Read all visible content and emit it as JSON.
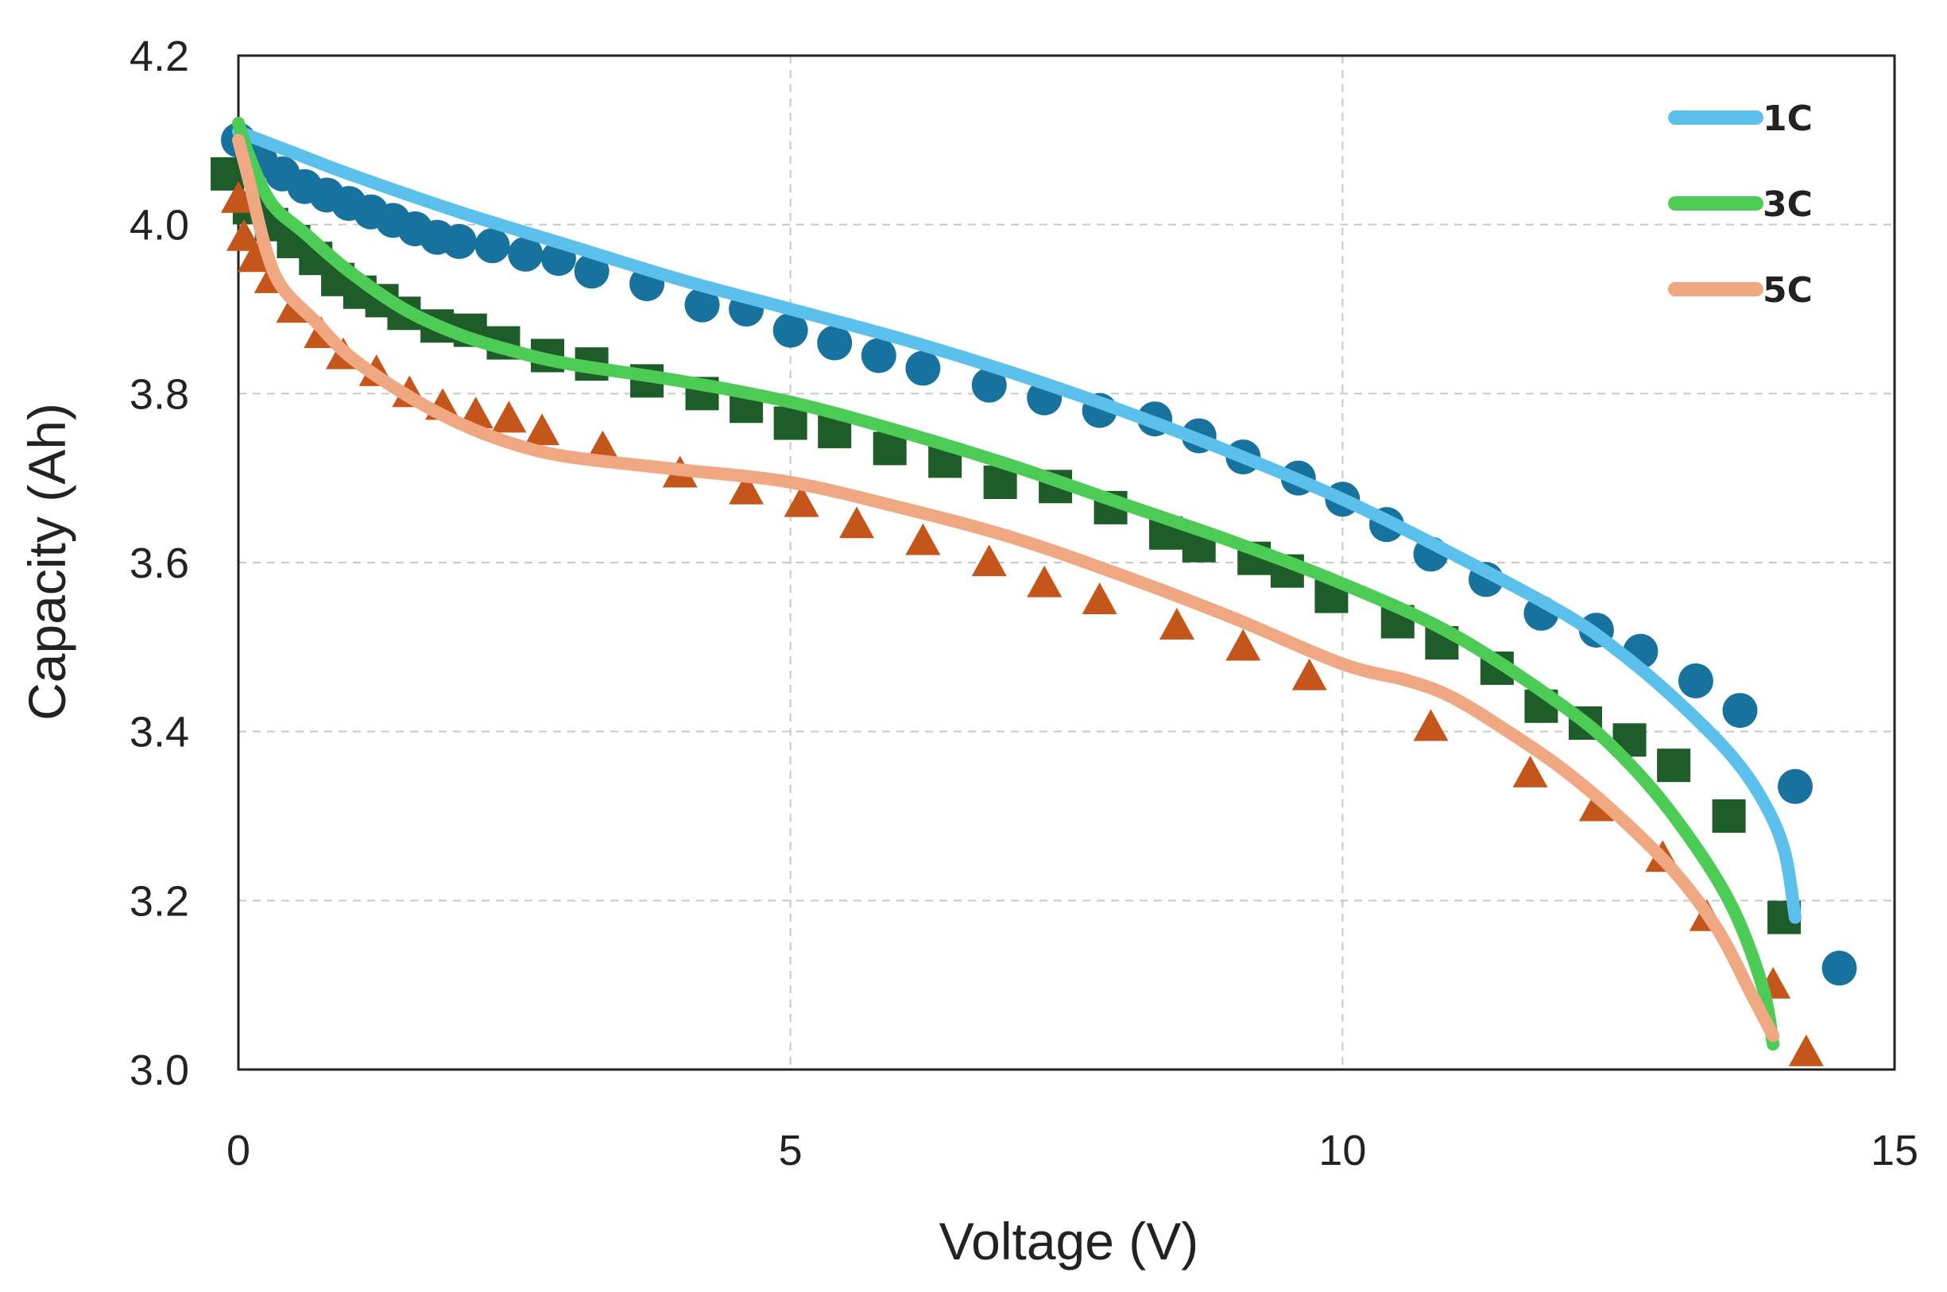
{
  "chart_data": {
    "type": "line",
    "title": "",
    "xlabel": "Voltage (V)",
    "ylabel": "Capacity (Ah)",
    "xlim": [
      0,
      15
    ],
    "ylim": [
      3.0,
      4.2
    ],
    "x_ticks": [
      0,
      5,
      10,
      15
    ],
    "y_ticks": [
      "3.0",
      "3.2",
      "3.4",
      "3.6",
      "3.8",
      "4.0",
      "4.2"
    ],
    "grid": "dashed",
    "legend_position": "top-right",
    "series": [
      {
        "name": "1C",
        "color": "#5bc0eb",
        "marker": "circle",
        "marker_color": "#17739e",
        "line": [
          [
            0,
            4.11
          ],
          [
            0.5,
            4.085
          ],
          [
            1,
            4.06
          ],
          [
            2,
            4.015
          ],
          [
            3,
            3.975
          ],
          [
            4,
            3.935
          ],
          [
            5,
            3.9
          ],
          [
            6,
            3.865
          ],
          [
            7,
            3.825
          ],
          [
            8,
            3.78
          ],
          [
            9,
            3.73
          ],
          [
            10,
            3.675
          ],
          [
            11,
            3.61
          ],
          [
            12,
            3.54
          ],
          [
            12.5,
            3.495
          ],
          [
            13,
            3.44
          ],
          [
            13.5,
            3.375
          ],
          [
            13.8,
            3.32
          ],
          [
            14,
            3.26
          ],
          [
            14.1,
            3.18
          ]
        ],
        "points": [
          [
            0,
            4.1
          ],
          [
            0.2,
            4.075
          ],
          [
            0.4,
            4.06
          ],
          [
            0.6,
            4.045
          ],
          [
            0.8,
            4.035
          ],
          [
            1.0,
            4.025
          ],
          [
            1.2,
            4.015
          ],
          [
            1.4,
            4.005
          ],
          [
            1.6,
            3.995
          ],
          [
            1.8,
            3.985
          ],
          [
            2.0,
            3.98
          ],
          [
            2.3,
            3.975
          ],
          [
            2.6,
            3.965
          ],
          [
            2.9,
            3.96
          ],
          [
            3.2,
            3.945
          ],
          [
            3.7,
            3.93
          ],
          [
            4.2,
            3.905
          ],
          [
            4.6,
            3.9
          ],
          [
            5.0,
            3.875
          ],
          [
            5.4,
            3.86
          ],
          [
            5.8,
            3.845
          ],
          [
            6.2,
            3.83
          ],
          [
            6.8,
            3.81
          ],
          [
            7.3,
            3.795
          ],
          [
            7.8,
            3.78
          ],
          [
            8.3,
            3.77
          ],
          [
            8.7,
            3.75
          ],
          [
            9.1,
            3.725
          ],
          [
            9.6,
            3.7
          ],
          [
            10.0,
            3.675
          ],
          [
            10.4,
            3.645
          ],
          [
            10.8,
            3.61
          ],
          [
            11.3,
            3.58
          ],
          [
            11.8,
            3.54
          ],
          [
            12.3,
            3.52
          ],
          [
            12.7,
            3.495
          ],
          [
            13.2,
            3.46
          ],
          [
            13.6,
            3.425
          ],
          [
            14.1,
            3.335
          ],
          [
            14.5,
            3.12
          ]
        ]
      },
      {
        "name": "3C",
        "color": "#4ccc55",
        "marker": "square",
        "marker_color": "#1e5c2a",
        "line": [
          [
            0,
            4.12
          ],
          [
            0.1,
            4.08
          ],
          [
            0.3,
            4.025
          ],
          [
            0.6,
            3.99
          ],
          [
            1,
            3.945
          ],
          [
            1.5,
            3.9
          ],
          [
            2,
            3.87
          ],
          [
            2.5,
            3.85
          ],
          [
            3,
            3.835
          ],
          [
            4,
            3.815
          ],
          [
            5,
            3.79
          ],
          [
            6,
            3.755
          ],
          [
            7,
            3.715
          ],
          [
            8,
            3.67
          ],
          [
            9,
            3.625
          ],
          [
            10,
            3.575
          ],
          [
            11,
            3.515
          ],
          [
            12,
            3.43
          ],
          [
            12.5,
            3.375
          ],
          [
            13,
            3.3
          ],
          [
            13.5,
            3.2
          ],
          [
            13.8,
            3.1
          ],
          [
            13.9,
            3.03
          ]
        ],
        "points": [
          [
            -0.1,
            4.06
          ],
          [
            0.1,
            4.02
          ],
          [
            0.3,
            4.0
          ],
          [
            0.5,
            3.98
          ],
          [
            0.7,
            3.96
          ],
          [
            0.9,
            3.935
          ],
          [
            1.1,
            3.92
          ],
          [
            1.3,
            3.91
          ],
          [
            1.5,
            3.895
          ],
          [
            1.8,
            3.88
          ],
          [
            2.1,
            3.875
          ],
          [
            2.4,
            3.86
          ],
          [
            2.8,
            3.845
          ],
          [
            3.2,
            3.835
          ],
          [
            3.7,
            3.815
          ],
          [
            4.2,
            3.8
          ],
          [
            4.6,
            3.785
          ],
          [
            5.0,
            3.765
          ],
          [
            5.4,
            3.755
          ],
          [
            5.9,
            3.735
          ],
          [
            6.4,
            3.72
          ],
          [
            6.9,
            3.695
          ],
          [
            7.4,
            3.69
          ],
          [
            7.9,
            3.665
          ],
          [
            8.4,
            3.635
          ],
          [
            8.7,
            3.62
          ],
          [
            9.2,
            3.605
          ],
          [
            9.5,
            3.59
          ],
          [
            9.9,
            3.56
          ],
          [
            10.5,
            3.53
          ],
          [
            10.9,
            3.505
          ],
          [
            11.4,
            3.475
          ],
          [
            11.8,
            3.43
          ],
          [
            12.2,
            3.41
          ],
          [
            12.6,
            3.39
          ],
          [
            13.0,
            3.36
          ],
          [
            13.5,
            3.3
          ],
          [
            14.0,
            3.18
          ]
        ]
      },
      {
        "name": "5C",
        "color": "#f0a882",
        "marker": "triangle",
        "marker_color": "#c4561c",
        "line": [
          [
            0,
            4.1
          ],
          [
            0.1,
            4.05
          ],
          [
            0.25,
            3.97
          ],
          [
            0.4,
            3.925
          ],
          [
            0.7,
            3.885
          ],
          [
            1,
            3.845
          ],
          [
            1.5,
            3.8
          ],
          [
            2,
            3.765
          ],
          [
            2.5,
            3.74
          ],
          [
            3,
            3.725
          ],
          [
            4,
            3.71
          ],
          [
            5,
            3.695
          ],
          [
            6,
            3.665
          ],
          [
            7,
            3.63
          ],
          [
            8,
            3.585
          ],
          [
            9,
            3.535
          ],
          [
            10,
            3.48
          ],
          [
            10.6,
            3.46
          ],
          [
            11,
            3.44
          ],
          [
            11.5,
            3.4
          ],
          [
            12,
            3.355
          ],
          [
            12.5,
            3.3
          ],
          [
            13,
            3.235
          ],
          [
            13.4,
            3.165
          ],
          [
            13.7,
            3.09
          ],
          [
            13.9,
            3.04
          ]
        ],
        "points": [
          [
            0,
            4.03
          ],
          [
            0.05,
            3.985
          ],
          [
            0.15,
            3.96
          ],
          [
            0.3,
            3.935
          ],
          [
            0.5,
            3.9
          ],
          [
            0.75,
            3.87
          ],
          [
            0.95,
            3.845
          ],
          [
            1.25,
            3.825
          ],
          [
            1.55,
            3.8
          ],
          [
            1.85,
            3.785
          ],
          [
            2.15,
            3.775
          ],
          [
            2.45,
            3.77
          ],
          [
            2.75,
            3.755
          ],
          [
            3.3,
            3.735
          ],
          [
            4.0,
            3.705
          ],
          [
            4.6,
            3.685
          ],
          [
            5.1,
            3.67
          ],
          [
            5.6,
            3.645
          ],
          [
            6.2,
            3.625
          ],
          [
            6.8,
            3.6
          ],
          [
            7.3,
            3.575
          ],
          [
            7.8,
            3.555
          ],
          [
            8.5,
            3.525
          ],
          [
            9.1,
            3.5
          ],
          [
            9.7,
            3.465
          ],
          [
            10.8,
            3.405
          ],
          [
            11.7,
            3.35
          ],
          [
            12.3,
            3.31
          ],
          [
            12.9,
            3.25
          ],
          [
            13.3,
            3.18
          ],
          [
            13.9,
            3.1
          ],
          [
            14.2,
            3.02
          ]
        ]
      }
    ]
  }
}
